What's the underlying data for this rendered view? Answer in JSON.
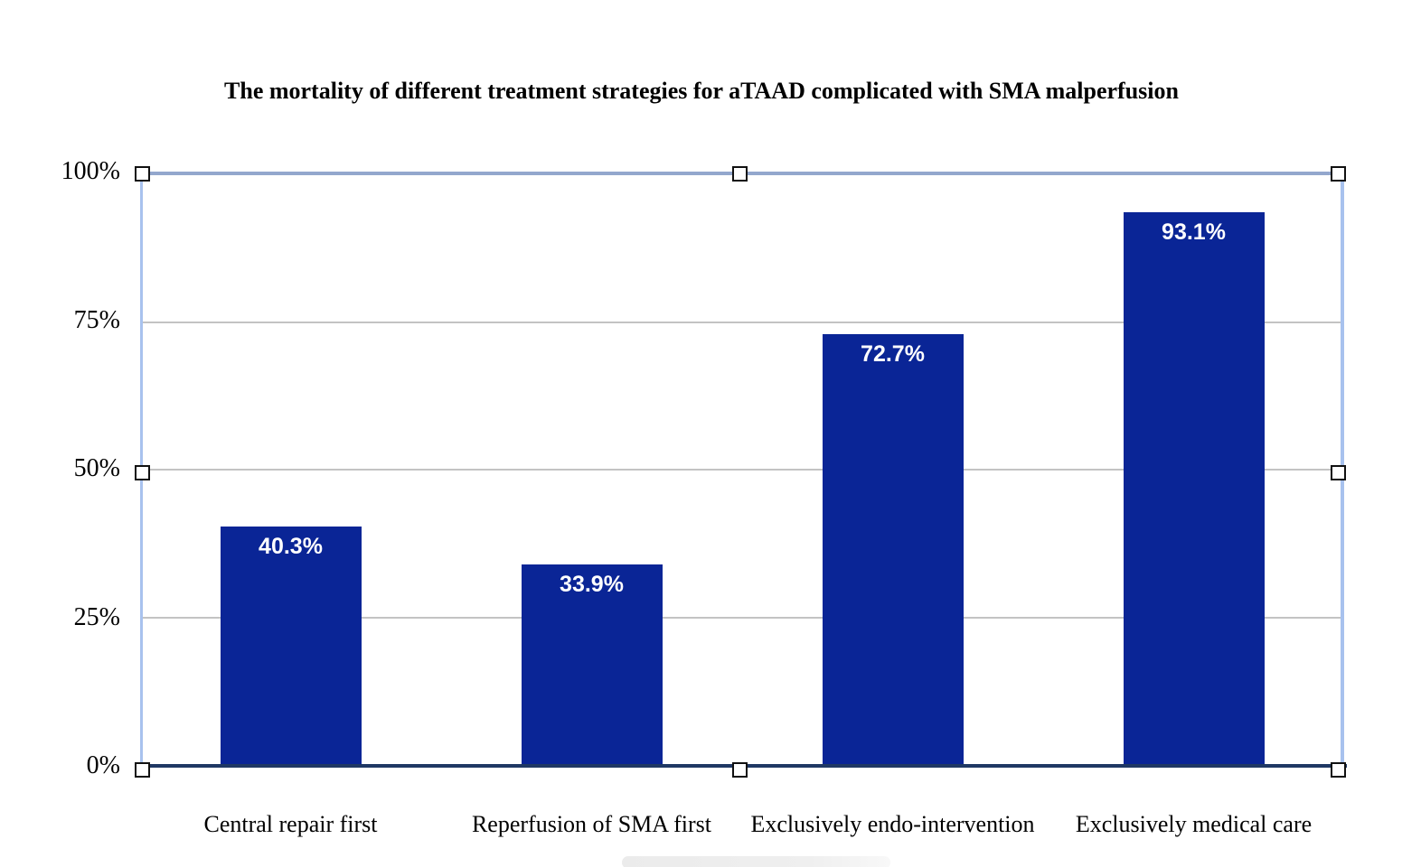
{
  "chart_data": {
    "type": "bar",
    "title": "The mortality of different treatment strategies for aTAAD complicated with SMA malperfusion",
    "categories": [
      "Central repair first",
      "Reperfusion of SMA first",
      "Exclusively endo-intervention",
      "Exclusively medical care"
    ],
    "values": [
      40.3,
      33.9,
      72.7,
      93.1
    ],
    "data_labels": [
      "40.3%",
      "33.9%",
      "72.7%",
      "93.1%"
    ],
    "xlabel": "",
    "ylabel": "",
    "ylim": [
      0,
      100
    ],
    "yticks": [
      0,
      25,
      50,
      75,
      100
    ],
    "ytick_labels": [
      "0%",
      "25%",
      "50%",
      "75%",
      "100%"
    ],
    "gridlines": [
      25,
      50,
      75
    ],
    "grid": true,
    "legend_position": "none"
  },
  "colors": {
    "bar": "#0a2596",
    "bar_label_text": "#ffffff",
    "baseline_axis": "#1f3864",
    "gridline": "#c3c3c3",
    "selection_frame_top": "#93a7cd",
    "selection_frame_sides": "#a8c2ee",
    "handle_fill": "#ffffff",
    "handle_border": "#111111",
    "text": "#000000"
  },
  "selection": {
    "is_selected": true,
    "handles": 8
  }
}
